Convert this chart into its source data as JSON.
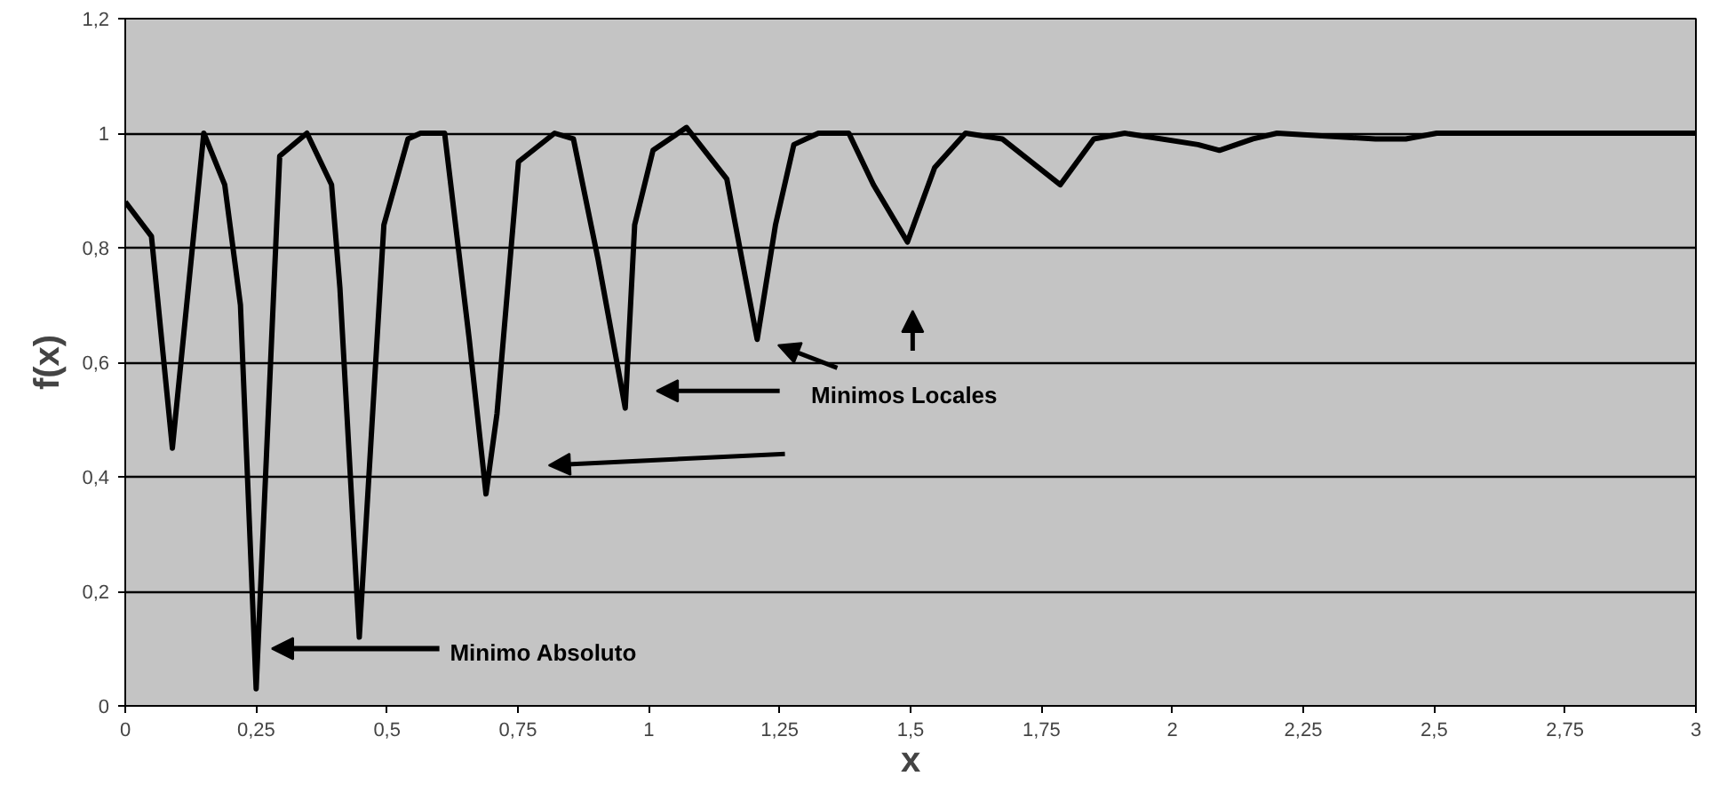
{
  "chart_data": {
    "type": "line",
    "xlabel": "x",
    "ylabel": "f(x)",
    "x": [
      0,
      0.05,
      0.09,
      0.15,
      0.19,
      0.22,
      0.25,
      0.295,
      0.347,
      0.394,
      0.41,
      0.447,
      0.494,
      0.54,
      0.564,
      0.61,
      0.657,
      0.689,
      0.71,
      0.751,
      0.82,
      0.856,
      0.903,
      0.955,
      0.973,
      1.008,
      1.072,
      1.149,
      1.184,
      1.207,
      1.242,
      1.277,
      1.324,
      1.382,
      1.429,
      1.494,
      1.546,
      1.605,
      1.675,
      1.786,
      1.85,
      1.909,
      2.049,
      2.09,
      2.154,
      2.2,
      2.388,
      2.446,
      2.505,
      3
    ],
    "series": [
      {
        "color": "#000000",
        "values": [
          0.88,
          0.82,
          0.45,
          1.0,
          0.91,
          0.7,
          0.03,
          0.96,
          1.0,
          0.91,
          0.73,
          0.12,
          0.84,
          0.99,
          1.0,
          1.0,
          0.64,
          0.37,
          0.51,
          0.95,
          1.0,
          0.99,
          0.78,
          0.52,
          0.84,
          0.97,
          1.01,
          0.92,
          0.75,
          0.64,
          0.84,
          0.98,
          1.0,
          1.0,
          0.91,
          0.81,
          0.94,
          1.0,
          0.99,
          0.91,
          0.99,
          1.0,
          0.98,
          0.97,
          0.99,
          1.0,
          0.99,
          0.99,
          1.0,
          1.0
        ]
      }
    ],
    "xlim": [
      0,
      3
    ],
    "ylim": [
      0,
      1.2
    ],
    "xticks": [
      0,
      {
        "value": 0.25,
        "label": "0,25"
      },
      {
        "value": 0.5,
        "label": "0,5"
      },
      {
        "value": 0.75,
        "label": "0,75"
      },
      1,
      {
        "value": 1.25,
        "label": "1,25"
      },
      {
        "value": 1.5,
        "label": "1,5"
      },
      {
        "value": 1.75,
        "label": "1,75"
      },
      2,
      {
        "value": 2.25,
        "label": "2,25"
      },
      {
        "value": 2.5,
        "label": "2,5"
      },
      {
        "value": 2.75,
        "label": "2,75"
      },
      3
    ],
    "yticks": [
      0,
      {
        "value": 0.2,
        "label": "0,2"
      },
      {
        "value": 0.4,
        "label": "0,4"
      },
      {
        "value": 0.6,
        "label": "0,6"
      },
      {
        "value": 0.8,
        "label": "0,8"
      },
      1,
      {
        "value": 1.2,
        "label": "1,2"
      }
    ],
    "grid": "y",
    "line_style": "solid",
    "marker": "none",
    "annotations": [
      "Minimo Absoluto",
      "Minimos Locales"
    ]
  }
}
